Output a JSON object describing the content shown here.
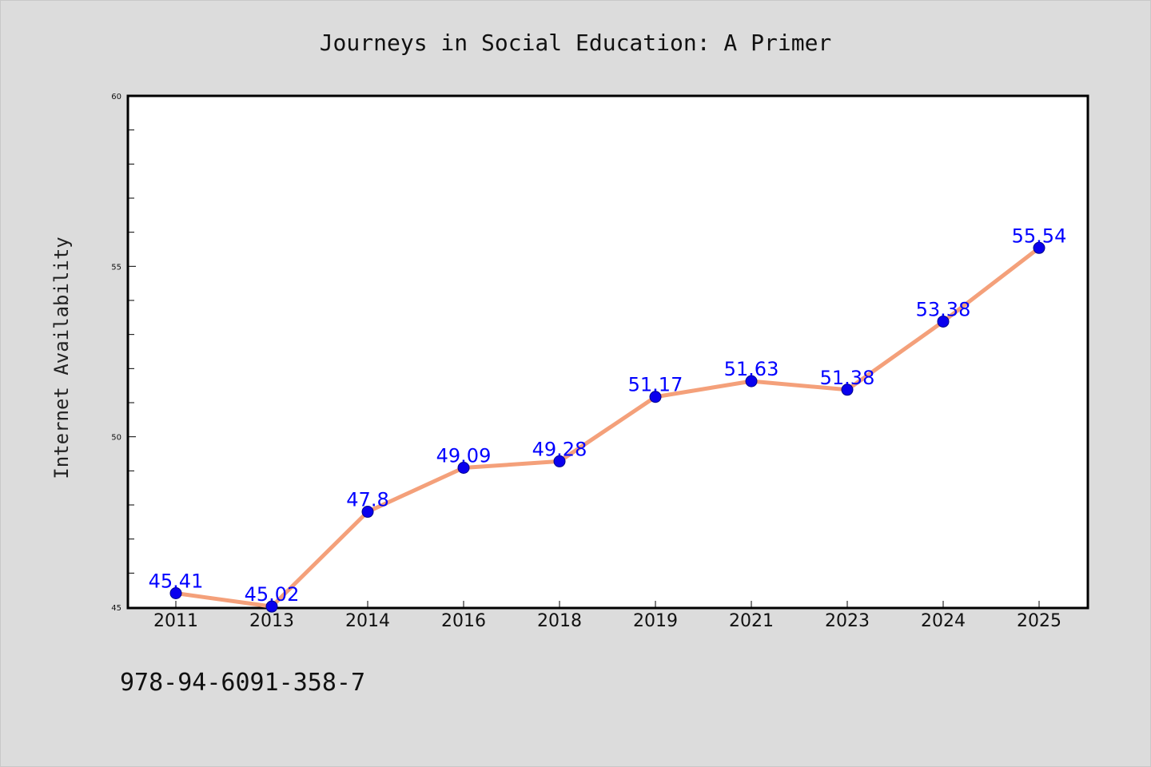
{
  "chart_data": {
    "type": "line",
    "title": "Journeys in Social Education: A Primer",
    "ylabel": "Internet Availability",
    "xlabel": "",
    "categories": [
      "2011",
      "2013",
      "2014",
      "2016",
      "2018",
      "2019",
      "2021",
      "2023",
      "2024",
      "2025"
    ],
    "series": [
      {
        "values": [
          45.41,
          45.02,
          47.8,
          49.09,
          49.28,
          51.17,
          51.63,
          51.38,
          53.38,
          55.54
        ],
        "value_labels": [
          "45.41",
          "45.02",
          "47.8",
          "49.09",
          "49.28",
          "51.17",
          "51.63",
          "51.38",
          "53.38",
          "55.54"
        ]
      }
    ],
    "ylim": [
      45,
      60
    ],
    "yticks": [
      "45",
      "50",
      "55",
      "60"
    ],
    "grid": false,
    "colors": {
      "line": "#f4a07a",
      "marker": "#0a00ee",
      "label": "#0000ff",
      "background": "#dcdcdc",
      "plot_background": "#ffffff"
    }
  },
  "footnote": "978-94-6091-358-7"
}
